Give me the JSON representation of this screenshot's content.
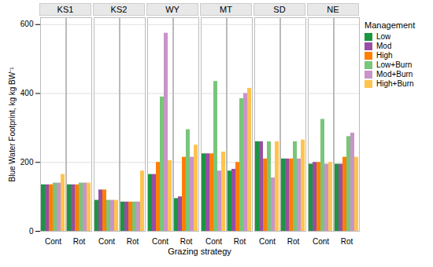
{
  "chart_data": {
    "type": "bar",
    "xlabel": "Grazing strategy",
    "ylabel": "Blue Water Footprint, kg kg BW⁻¹",
    "legend_title": "Management",
    "facets": [
      "KS1",
      "KS2",
      "WY",
      "MT",
      "SD",
      "NE"
    ],
    "categories": [
      "Cont",
      "Rot"
    ],
    "series": [
      {
        "name": "Low",
        "color": "#1a9641",
        "values": [
          [
            135,
            135
          ],
          [
            90,
            85
          ],
          [
            165,
            95
          ],
          [
            225,
            175
          ],
          [
            260,
            210
          ],
          [
            195,
            195
          ]
        ]
      },
      {
        "name": "Mod",
        "color": "#984ea3",
        "values": [
          [
            135,
            135
          ],
          [
            120,
            85
          ],
          [
            165,
            100
          ],
          [
            225,
            180
          ],
          [
            260,
            210
          ],
          [
            200,
            195
          ]
        ]
      },
      {
        "name": "High",
        "color": "#ff7f00",
        "values": [
          [
            135,
            135
          ],
          [
            120,
            85
          ],
          [
            200,
            215
          ],
          [
            225,
            200
          ],
          [
            210,
            210
          ],
          [
            200,
            215
          ]
        ]
      },
      {
        "name": "Low+Burn",
        "color": "#78c679",
        "values": [
          [
            140,
            140
          ],
          [
            90,
            85
          ],
          [
            390,
            295
          ],
          [
            435,
            385
          ],
          [
            260,
            260
          ],
          [
            325,
            275
          ]
        ]
      },
      {
        "name": "Mod+Burn",
        "color": "#c994c7",
        "values": [
          [
            140,
            140
          ],
          [
            90,
            85
          ],
          [
            575,
            215
          ],
          [
            175,
            400
          ],
          [
            155,
            210
          ],
          [
            195,
            285
          ]
        ]
      },
      {
        "name": "High+Burn",
        "color": "#fec44f",
        "values": [
          [
            165,
            140
          ],
          [
            90,
            175
          ],
          [
            205,
            250
          ],
          [
            230,
            415
          ],
          [
            260,
            265
          ],
          [
            200,
            215
          ]
        ]
      }
    ],
    "ylim": [
      0,
      620
    ],
    "yticks": [
      0,
      200,
      400,
      600
    ],
    "grid": true,
    "legend": "right"
  }
}
